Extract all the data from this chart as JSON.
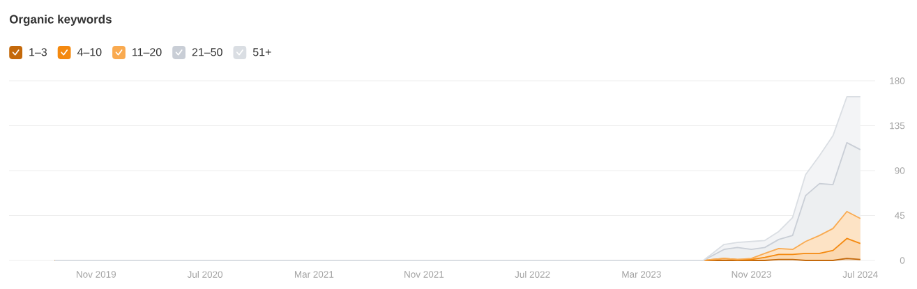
{
  "chart_data": {
    "type": "area",
    "title": "Organic keywords",
    "stacked": true,
    "x": [
      "2019-08",
      "2023-07-17",
      "2023-09",
      "2023-10",
      "2023-11",
      "2023-12",
      "2024-01",
      "2024-02",
      "2024-03",
      "2024-04",
      "2024-05",
      "2024-06",
      "2024-07"
    ],
    "series": [
      {
        "name": "1–3",
        "color": "#c4690b",
        "values": [
          0,
          0,
          0,
          0,
          0,
          0,
          1,
          1,
          0,
          0,
          0,
          2,
          1
        ]
      },
      {
        "name": "4–10",
        "color": "#f4890f",
        "values": [
          0,
          0,
          2,
          1,
          1,
          3,
          5,
          5,
          7,
          7,
          10,
          20,
          16
        ]
      },
      {
        "name": "11–20",
        "color": "#f9aa50",
        "values": [
          0,
          0,
          0,
          0,
          1,
          4,
          6,
          5,
          12,
          18,
          22,
          27,
          25
        ]
      },
      {
        "name": "21–50",
        "color": "#c9ced6",
        "values": [
          0,
          0,
          9,
          12,
          9,
          6,
          9,
          14,
          46,
          52,
          44,
          69,
          69
        ]
      },
      {
        "name": "51+",
        "color": "#dadee3",
        "values": [
          0,
          0,
          5,
          5,
          8,
          7,
          8,
          18,
          21,
          28,
          49,
          46,
          53
        ]
      }
    ],
    "xlim": [
      "2019-04-21",
      "2024-08-03"
    ],
    "ylim": [
      0,
      180
    ],
    "xticks": [
      {
        "value": "2019-11",
        "label": "Nov 2019"
      },
      {
        "value": "2020-07",
        "label": "Jul 2020"
      },
      {
        "value": "2021-03",
        "label": "Mar 2021"
      },
      {
        "value": "2021-11",
        "label": "Nov 2021"
      },
      {
        "value": "2022-07",
        "label": "Jul 2022"
      },
      {
        "value": "2023-03",
        "label": "Mar 2023"
      },
      {
        "value": "2023-11",
        "label": "Nov 2023"
      },
      {
        "value": "2024-07",
        "label": "Jul 2024"
      }
    ],
    "yticks": [
      0,
      45,
      90,
      135,
      180
    ],
    "grid": "y",
    "legend": "top left"
  }
}
